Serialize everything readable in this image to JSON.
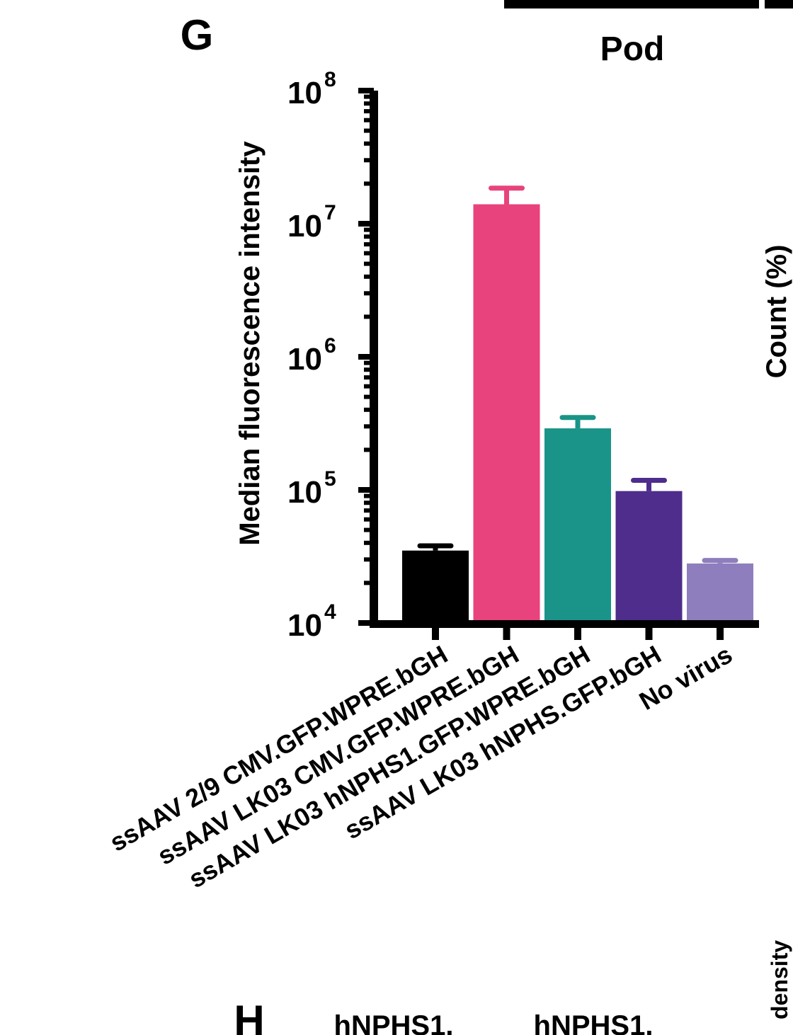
{
  "panel_labels": {
    "main": "G",
    "next": "H"
  },
  "chart_data": {
    "type": "bar",
    "title": "Pod",
    "ylabel": "Median fluorescence intensity",
    "xlabel": "",
    "yscale": "log",
    "ylim": [
      10000,
      100000000
    ],
    "yticks": [
      {
        "base": "10",
        "exp": "4",
        "value": 10000
      },
      {
        "base": "10",
        "exp": "5",
        "value": 100000
      },
      {
        "base": "10",
        "exp": "6",
        "value": 1000000
      },
      {
        "base": "10",
        "exp": "7",
        "value": 10000000
      },
      {
        "base": "10",
        "exp": "8",
        "value": 100000000
      }
    ],
    "categories": [
      "ssAAV 2/9 CMV.GFP.WPRE.bGH",
      "ssAAV LK03 CMV.GFP.WPRE.bGH",
      "ssAAV LK03 hNPHS1.GFP.WPRE.bGH",
      "ssAAV LK03 hNPHS.GFP.bGH",
      "No virus"
    ],
    "values": [
      35000,
      14000000,
      290000,
      98000,
      28000
    ],
    "error_upper": [
      38000,
      18500000,
      350000,
      118000,
      29500
    ],
    "colors": [
      "#000000",
      "#e8437c",
      "#1a9488",
      "#4e2d8c",
      "#8f7ebd"
    ],
    "grid": false
  },
  "cropped_fragments": {
    "top_right_panel_title": "Pod",
    "right_axis_label": "Count  (%)",
    "right_axis_label_lower": "density",
    "bottom_labels": [
      "hNPHS1.",
      "hNPHS1."
    ]
  }
}
